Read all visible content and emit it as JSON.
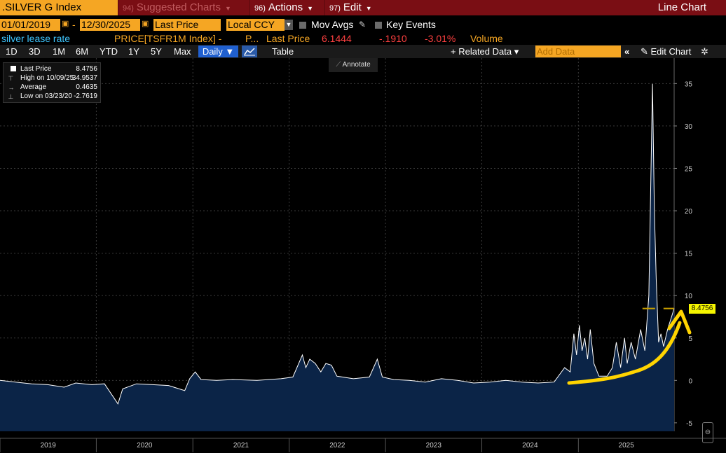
{
  "toolbar": {
    "ticker": ".SILVER G Index",
    "menus": [
      {
        "num": "94)",
        "label": "Suggested Charts",
        "dim": true
      },
      {
        "num": "96)",
        "label": "Actions",
        "dim": false
      },
      {
        "num": "97)",
        "label": "Edit",
        "dim": false
      }
    ],
    "view_title": "Line Chart"
  },
  "settings": {
    "start_date": "01/01/2019",
    "end_date": "12/30/2025",
    "price_field": "Last Price",
    "currency": "Local CCY",
    "mov_avgs": "Mov Avgs",
    "key_events": "Key Events"
  },
  "security": {
    "description": "silver lease rate",
    "second_series": "PRICE[TSFR1M Index] -",
    "second_series_tail": "P...",
    "last_label": "Last Price",
    "last_value": "6.1444",
    "change": "-.1910",
    "change_pct": "-3.01%",
    "volume_label": "Volume"
  },
  "periods": [
    "1D",
    "3D",
    "1M",
    "6M",
    "YTD",
    "1Y",
    "5Y",
    "Max"
  ],
  "frequency": "Daily ▼",
  "table_label": "Table",
  "related_data": "+ Related Data ▾",
  "add_data_placeholder": "Add Data",
  "edit_chart": "✎ Edit Chart",
  "annotate_label": "Annotate",
  "legend": {
    "last_label": "Last Price",
    "last_value": "8.4756",
    "high_label": "High on 10/09/25",
    "high_value": "34.9537",
    "avg_label": "Average",
    "avg_value": "0.4635",
    "low_label": "Low on 03/23/20",
    "low_value": "-2.7619"
  },
  "price_tag": "8.4756",
  "colors": {
    "toolbar_bg": "#7a0e14",
    "orange": "#f5a623",
    "area_fill": "#0b2447",
    "line": "#ffffff",
    "highlight": "#ffd400",
    "price_tag": "#f5f500",
    "negative": "#ff4040"
  },
  "chart_data": {
    "type": "area",
    "title": "",
    "xlabel": "",
    "ylabel": "",
    "x_ticks": [
      "2019",
      "2020",
      "2021",
      "2022",
      "2023",
      "2024",
      "2025"
    ],
    "y_ticks": [
      -5,
      0,
      5,
      10,
      15,
      20,
      25,
      30,
      35
    ],
    "ylim": [
      -6,
      38
    ],
    "xlim": [
      "2019-01-01",
      "2025-12-30"
    ],
    "grid": true,
    "series": [
      {
        "name": "",
        "points": [
          [
            "2019-01-01",
            0.0
          ],
          [
            "2019-03-01",
            -0.2
          ],
          [
            "2019-05-01",
            -0.4
          ],
          [
            "2019-07-01",
            -0.5
          ],
          [
            "2019-09-01",
            -0.8
          ],
          [
            "2019-10-15",
            -0.3
          ],
          [
            "2019-12-15",
            -0.5
          ],
          [
            "2020-02-01",
            -0.4
          ],
          [
            "2020-03-23",
            -2.76
          ],
          [
            "2020-04-10",
            -1.0
          ],
          [
            "2020-06-01",
            -0.4
          ],
          [
            "2020-08-01",
            -0.5
          ],
          [
            "2020-10-01",
            -0.6
          ],
          [
            "2020-12-01",
            -1.2
          ],
          [
            "2020-12-20",
            0.2
          ],
          [
            "2021-01-10",
            1.0
          ],
          [
            "2021-02-01",
            0.1
          ],
          [
            "2021-04-01",
            0.0
          ],
          [
            "2021-06-01",
            0.1
          ],
          [
            "2021-09-01",
            0.0
          ],
          [
            "2021-12-01",
            0.2
          ],
          [
            "2022-01-15",
            0.4
          ],
          [
            "2022-02-20",
            3.0
          ],
          [
            "2022-03-05",
            1.5
          ],
          [
            "2022-03-20",
            2.5
          ],
          [
            "2022-04-10",
            2.0
          ],
          [
            "2022-05-01",
            1.0
          ],
          [
            "2022-05-20",
            2.0
          ],
          [
            "2022-06-10",
            1.8
          ],
          [
            "2022-07-01",
            0.5
          ],
          [
            "2022-09-01",
            0.2
          ],
          [
            "2022-11-01",
            0.4
          ],
          [
            "2022-12-01",
            2.5
          ],
          [
            "2022-12-20",
            0.4
          ],
          [
            "2023-02-01",
            0.1
          ],
          [
            "2023-04-01",
            0.0
          ],
          [
            "2023-06-01",
            -0.2
          ],
          [
            "2023-08-01",
            0.2
          ],
          [
            "2023-10-01",
            0.0
          ],
          [
            "2023-12-01",
            -0.3
          ],
          [
            "2024-02-01",
            -0.2
          ],
          [
            "2024-04-01",
            0.0
          ],
          [
            "2024-06-01",
            -0.2
          ],
          [
            "2024-08-01",
            -0.3
          ],
          [
            "2024-10-01",
            -0.2
          ],
          [
            "2024-11-10",
            1.5
          ],
          [
            "2024-12-01",
            1.0
          ],
          [
            "2024-12-15",
            5.5
          ],
          [
            "2024-12-25",
            3.0
          ],
          [
            "2025-01-05",
            6.5
          ],
          [
            "2025-01-15",
            3.5
          ],
          [
            "2025-01-25",
            5.0
          ],
          [
            "2025-02-05",
            2.5
          ],
          [
            "2025-02-15",
            6.0
          ],
          [
            "2025-03-01",
            2.0
          ],
          [
            "2025-03-20",
            0.5
          ],
          [
            "2025-04-20",
            0.5
          ],
          [
            "2025-05-10",
            1.5
          ],
          [
            "2025-05-25",
            4.5
          ],
          [
            "2025-06-10",
            1.5
          ],
          [
            "2025-06-25",
            5.0
          ],
          [
            "2025-07-05",
            2.0
          ],
          [
            "2025-07-20",
            4.5
          ],
          [
            "2025-08-05",
            2.5
          ],
          [
            "2025-08-25",
            6.0
          ],
          [
            "2025-09-10",
            3.5
          ],
          [
            "2025-09-25",
            10.0
          ],
          [
            "2025-10-09",
            34.95
          ],
          [
            "2025-10-16",
            20.0
          ],
          [
            "2025-10-23",
            12.0
          ],
          [
            "2025-11-01",
            4.5
          ],
          [
            "2025-11-10",
            5.5
          ],
          [
            "2025-11-20",
            4.0
          ],
          [
            "2025-12-05",
            6.0
          ],
          [
            "2025-12-15",
            7.0
          ],
          [
            "2025-12-30",
            8.4756
          ]
        ]
      }
    ]
  }
}
